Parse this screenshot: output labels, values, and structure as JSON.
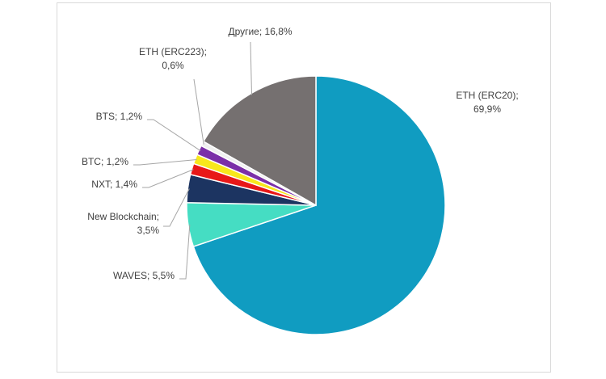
{
  "chart_data": {
    "type": "pie",
    "title": "",
    "slices": [
      {
        "name": "ETH (ERC20)",
        "value": 69.9,
        "label": [
          "ETH (ERC20);",
          "69,9%"
        ],
        "color": "#109cc1"
      },
      {
        "name": "WAVES",
        "value": 5.5,
        "label": [
          "WAVES; 5,5%"
        ],
        "color": "#45ddc3"
      },
      {
        "name": "New Blockchain",
        "value": 3.5,
        "label": [
          "New Blockchain;",
          "3,5%"
        ],
        "color": "#1c3461"
      },
      {
        "name": "NXT",
        "value": 1.4,
        "label": [
          "NXT; 1,4%"
        ],
        "color": "#e81818"
      },
      {
        "name": "BTC",
        "value": 1.2,
        "label": [
          "BTC; 1,2%"
        ],
        "color": "#f8e71c"
      },
      {
        "name": "BTS",
        "value": 1.2,
        "label": [
          "BTS; 1,2%"
        ],
        "color": "#7b2fa8"
      },
      {
        "name": "ETH (ERC223)",
        "value": 0.6,
        "label": [
          "ETH (ERC223);",
          "0,6%"
        ],
        "color": "#f0f0f0"
      },
      {
        "name": "Другие",
        "value": 16.8,
        "label": [
          "Другие; 16,8%"
        ],
        "color": "#757070"
      }
    ]
  }
}
